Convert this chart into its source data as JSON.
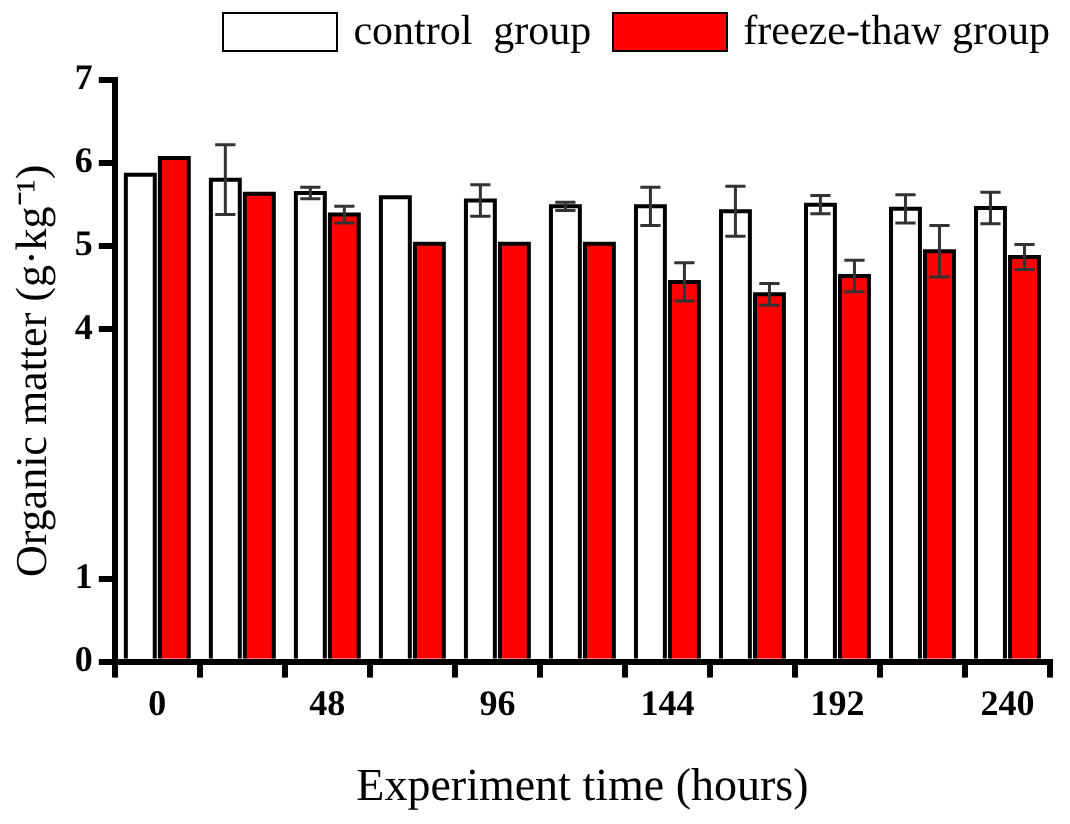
{
  "chart_data": {
    "type": "bar",
    "xlabel": "Experiment time (hours)",
    "ylabel": "Organic matter (g·kg⁻¹)",
    "categories": [
      "0",
      null,
      "48",
      null,
      "96",
      null,
      "144",
      null,
      "192",
      null,
      "240"
    ],
    "ylim": [
      0,
      7
    ],
    "yticks": [
      0,
      1,
      4,
      5,
      6,
      7
    ],
    "grid": false,
    "legend": "top",
    "series": [
      {
        "name": "control  group",
        "color": "#ffffff",
        "values": [
          5.86,
          5.8,
          5.64,
          5.59,
          5.55,
          5.48,
          5.48,
          5.42,
          5.5,
          5.45,
          5.46
        ],
        "errors": [
          null,
          0.42,
          0.07,
          null,
          0.19,
          0.05,
          0.23,
          0.3,
          0.11,
          0.17,
          0.19
        ]
      },
      {
        "name": "freeze-thaw group",
        "color": "#ff0000",
        "values": [
          6.06,
          5.63,
          5.38,
          5.03,
          5.03,
          5.03,
          4.57,
          4.42,
          4.64,
          4.94,
          4.87
        ],
        "errors": [
          null,
          null,
          0.1,
          null,
          null,
          null,
          0.23,
          0.13,
          0.19,
          0.31,
          0.15
        ]
      }
    ]
  }
}
